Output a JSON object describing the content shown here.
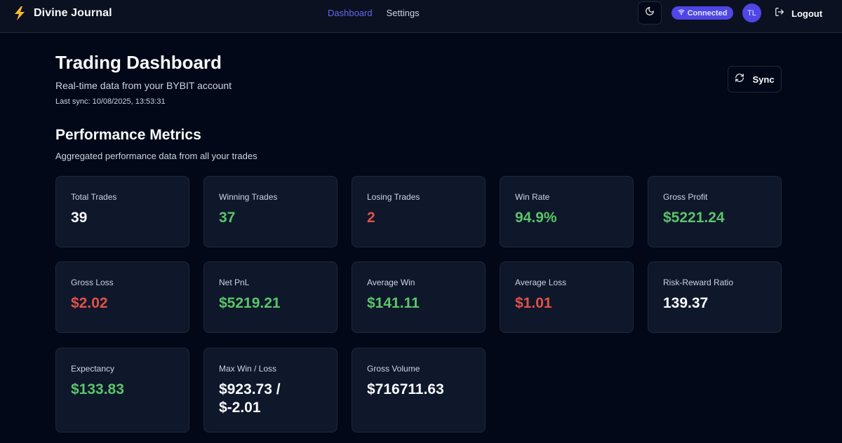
{
  "nav": {
    "brand": "Divine Journal",
    "links": [
      "Dashboard",
      "Settings"
    ],
    "connection_status": "Connected",
    "avatar_initials": "TL",
    "logout_label": "Logout"
  },
  "header": {
    "title": "Trading Dashboard",
    "subtitle": "Real-time data from your BYBIT account",
    "last_sync": "Last sync: 10/08/2025, 13:53:31",
    "sync_label": "Sync"
  },
  "metrics_section": {
    "title": "Performance Metrics",
    "subtitle": "Aggregated performance data from all your trades"
  },
  "metrics": [
    {
      "label": "Total Trades",
      "value": "39",
      "tone": "neutral"
    },
    {
      "label": "Winning Trades",
      "value": "37",
      "tone": "positive"
    },
    {
      "label": "Losing Trades",
      "value": "2",
      "tone": "negative"
    },
    {
      "label": "Win Rate",
      "value": "94.9%",
      "tone": "positive"
    },
    {
      "label": "Gross Profit",
      "value": "$5221.24",
      "tone": "positive"
    },
    {
      "label": "Gross Loss",
      "value": "$2.02",
      "tone": "negative"
    },
    {
      "label": "Net PnL",
      "value": "$5219.21",
      "tone": "positive"
    },
    {
      "label": "Average Win",
      "value": "$141.11",
      "tone": "positive"
    },
    {
      "label": "Average Loss",
      "value": "$1.01",
      "tone": "negative"
    },
    {
      "label": "Risk-Reward Ratio",
      "value": "139.37",
      "tone": "neutral"
    },
    {
      "label": "Expectancy",
      "value": "$133.83",
      "tone": "positive"
    },
    {
      "label": "Max Win / Loss",
      "value": "$923.73 / $-2.01",
      "tone": "neutral"
    },
    {
      "label": "Gross Volume",
      "value": "$716711.63",
      "tone": "neutral"
    }
  ],
  "icons": {
    "brand": "lightning-bolt-icon",
    "theme_toggle": "moon-icon",
    "connection": "wifi-icon",
    "logout": "logout-icon",
    "sync": "refresh-icon"
  },
  "colors": {
    "accent": "#6366f1",
    "badge": "#4f46e5",
    "positive": "#5ac46a",
    "negative": "#e0524a",
    "background": "#020817",
    "card": "#0f172a"
  }
}
